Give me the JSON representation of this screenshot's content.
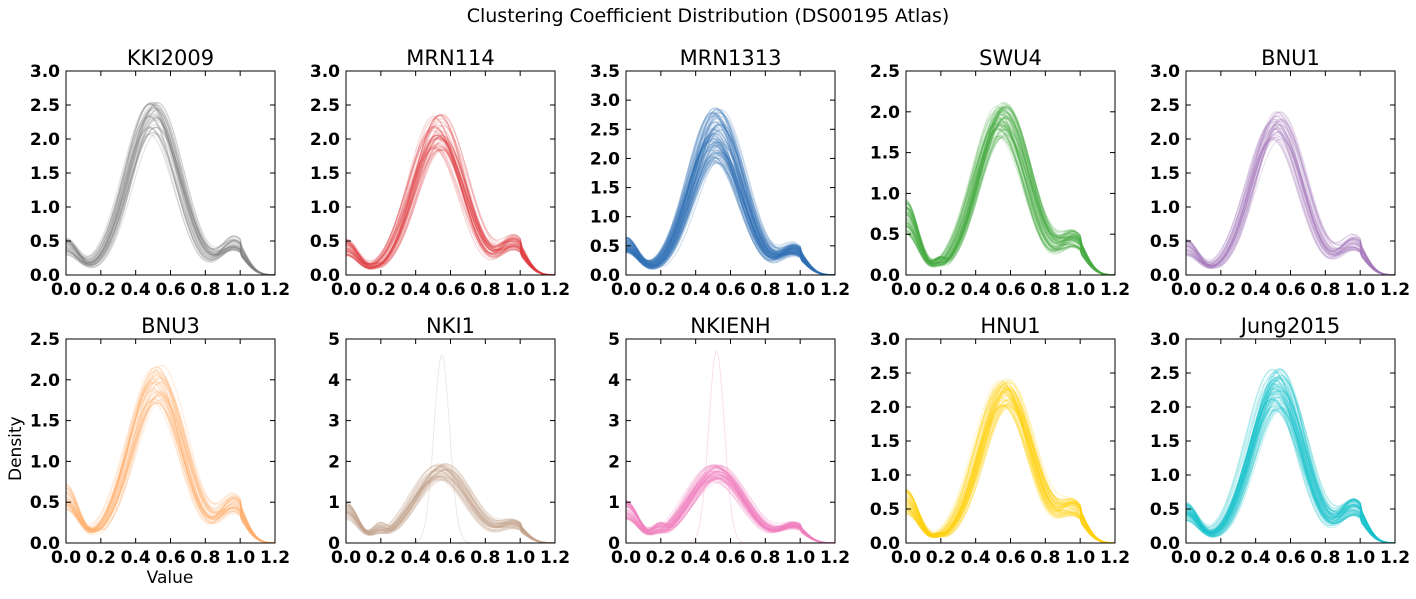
{
  "figure": {
    "title": "Clustering Coefficient Distribution (DS00195 Atlas)",
    "xlabel": "Value",
    "ylabel": "Density"
  },
  "chart_data": [
    {
      "type": "line",
      "title": "KKI2009",
      "color": "#7f7f7f",
      "xlim": [
        0,
        1.2
      ],
      "ylim": [
        0,
        3.0
      ],
      "xticks": [
        "0.0",
        "0.2",
        "0.4",
        "0.6",
        "0.8",
        "1.0",
        "1.2"
      ],
      "yticks": [
        "0.0",
        "0.5",
        "1.0",
        "1.5",
        "2.0",
        "2.5",
        "3.0"
      ],
      "curve": {
        "start": 0.4,
        "dip": 0.05,
        "peak": 2.3,
        "peak_x": 0.5,
        "sigma": 0.15,
        "shoulder": 0.45
      },
      "n_curves": 40,
      "spread": 0.12
    },
    {
      "type": "line",
      "title": "MRN114",
      "color": "#e0393e",
      "xlim": [
        0,
        1.2
      ],
      "ylim": [
        0,
        3.0
      ],
      "xticks": [
        "0.0",
        "0.2",
        "0.4",
        "0.6",
        "0.8",
        "1.0",
        "1.2"
      ],
      "yticks": [
        "0.0",
        "0.5",
        "1.0",
        "1.5",
        "2.0",
        "2.5",
        "3.0"
      ],
      "curve": {
        "start": 0.4,
        "dip": 0.12,
        "peak": 2.1,
        "peak_x": 0.53,
        "sigma": 0.15,
        "shoulder": 0.45
      },
      "n_curves": 45,
      "spread": 0.13
    },
    {
      "type": "line",
      "title": "MRN1313",
      "color": "#3274b5",
      "xlim": [
        0,
        1.2
      ],
      "ylim": [
        0,
        3.5
      ],
      "xticks": [
        "0.0",
        "0.2",
        "0.4",
        "0.6",
        "0.8",
        "1.0",
        "1.2"
      ],
      "yticks": [
        "0.0",
        "0.5",
        "1.0",
        "1.5",
        "2.0",
        "2.5",
        "3.0",
        "3.5"
      ],
      "curve": {
        "start": 0.5,
        "dip": 0.1,
        "peak": 2.4,
        "peak_x": 0.52,
        "sigma": 0.15,
        "shoulder": 0.4
      },
      "n_curves": 90,
      "spread": 0.2
    },
    {
      "type": "line",
      "title": "SWU4",
      "color": "#4aab45",
      "xlim": [
        0,
        1.2
      ],
      "ylim": [
        0,
        2.5
      ],
      "xticks": [
        "0.0",
        "0.2",
        "0.4",
        "0.6",
        "0.8",
        "1.0",
        "1.2"
      ],
      "yticks": [
        "0.0",
        "0.5",
        "1.0",
        "1.5",
        "2.0",
        "2.5"
      ],
      "curve": {
        "start": 0.7,
        "dip": 0.15,
        "peak": 1.9,
        "peak_x": 0.55,
        "sigma": 0.15,
        "shoulder": 0.4
      },
      "n_curves": 70,
      "spread": 0.12
    },
    {
      "type": "line",
      "title": "BNU1",
      "color": "#a678bc",
      "xlim": [
        0,
        1.2
      ],
      "ylim": [
        0,
        3.0
      ],
      "xticks": [
        "0.0",
        "0.2",
        "0.4",
        "0.6",
        "0.8",
        "1.0",
        "1.2"
      ],
      "yticks": [
        "0.0",
        "0.5",
        "1.0",
        "1.5",
        "2.0",
        "2.5",
        "3.0"
      ],
      "curve": {
        "start": 0.4,
        "dip": 0.1,
        "peak": 2.2,
        "peak_x": 0.52,
        "sigma": 0.15,
        "shoulder": 0.45
      },
      "n_curves": 40,
      "spread": 0.1
    },
    {
      "type": "line",
      "title": "BNU3",
      "color": "#fdae6b",
      "xlim": [
        0,
        1.2
      ],
      "ylim": [
        0,
        2.5
      ],
      "xticks": [
        "0.0",
        "0.2",
        "0.4",
        "0.6",
        "0.8",
        "1.0",
        "1.2"
      ],
      "yticks": [
        "0.0",
        "0.5",
        "1.0",
        "1.5",
        "2.0",
        "2.5"
      ],
      "curve": {
        "start": 0.55,
        "dip": 0.12,
        "peak": 1.95,
        "peak_x": 0.52,
        "sigma": 0.15,
        "shoulder": 0.45
      },
      "n_curves": 40,
      "spread": 0.12
    },
    {
      "type": "line",
      "title": "NKI1",
      "color": "#c4a58e",
      "xlim": [
        0,
        1.2
      ],
      "ylim": [
        0,
        5
      ],
      "xticks": [
        "0.0",
        "0.2",
        "0.4",
        "0.6",
        "0.8",
        "1.0",
        "1.2"
      ],
      "yticks": [
        "0",
        "1",
        "2",
        "3",
        "4",
        "5"
      ],
      "curve": {
        "start": 0.8,
        "dip": 0.35,
        "peak": 1.75,
        "peak_x": 0.55,
        "sigma": 0.16,
        "shoulder": 0.4
      },
      "n_curves": 45,
      "spread": 0.12,
      "outlier": {
        "peak": 4.6,
        "peak_x": 0.55,
        "sigma": 0.045
      }
    },
    {
      "type": "line",
      "title": "NKIENH",
      "color": "#f07fbf",
      "xlim": [
        0,
        1.2
      ],
      "ylim": [
        0,
        5
      ],
      "xticks": [
        "0.0",
        "0.2",
        "0.4",
        "0.6",
        "0.8",
        "1.0",
        "1.2"
      ],
      "yticks": [
        "0",
        "1",
        "2",
        "3",
        "4",
        "5"
      ],
      "curve": {
        "start": 0.8,
        "dip": 0.35,
        "peak": 1.7,
        "peak_x": 0.52,
        "sigma": 0.16,
        "shoulder": 0.4
      },
      "n_curves": 60,
      "spread": 0.13,
      "outlier": {
        "peak": 4.7,
        "peak_x": 0.52,
        "sigma": 0.045
      }
    },
    {
      "type": "line",
      "title": "HNU1",
      "color": "#fdd20f",
      "xlim": [
        0,
        1.2
      ],
      "ylim": [
        0,
        3.0
      ],
      "xticks": [
        "0.0",
        "0.2",
        "0.4",
        "0.6",
        "0.8",
        "1.0",
        "1.2"
      ],
      "yticks": [
        "0.0",
        "0.5",
        "1.0",
        "1.5",
        "2.0",
        "2.5",
        "3.0"
      ],
      "curve": {
        "start": 0.6,
        "dip": 0.1,
        "peak": 2.2,
        "peak_x": 0.57,
        "sigma": 0.15,
        "shoulder": 0.45
      },
      "n_curves": 60,
      "spread": 0.1
    },
    {
      "type": "line",
      "title": "Jung2015",
      "color": "#1cc6cc",
      "xlim": [
        0,
        1.2
      ],
      "ylim": [
        0,
        3.0
      ],
      "xticks": [
        "0.0",
        "0.2",
        "0.4",
        "0.6",
        "0.8",
        "1.0",
        "1.2"
      ],
      "yticks": [
        "0.0",
        "0.5",
        "1.0",
        "1.5",
        "2.0",
        "2.5",
        "3.0"
      ],
      "curve": {
        "start": 0.45,
        "dip": 0.08,
        "peak": 2.25,
        "peak_x": 0.52,
        "sigma": 0.15,
        "shoulder": 0.5
      },
      "n_curves": 70,
      "spread": 0.14
    }
  ]
}
